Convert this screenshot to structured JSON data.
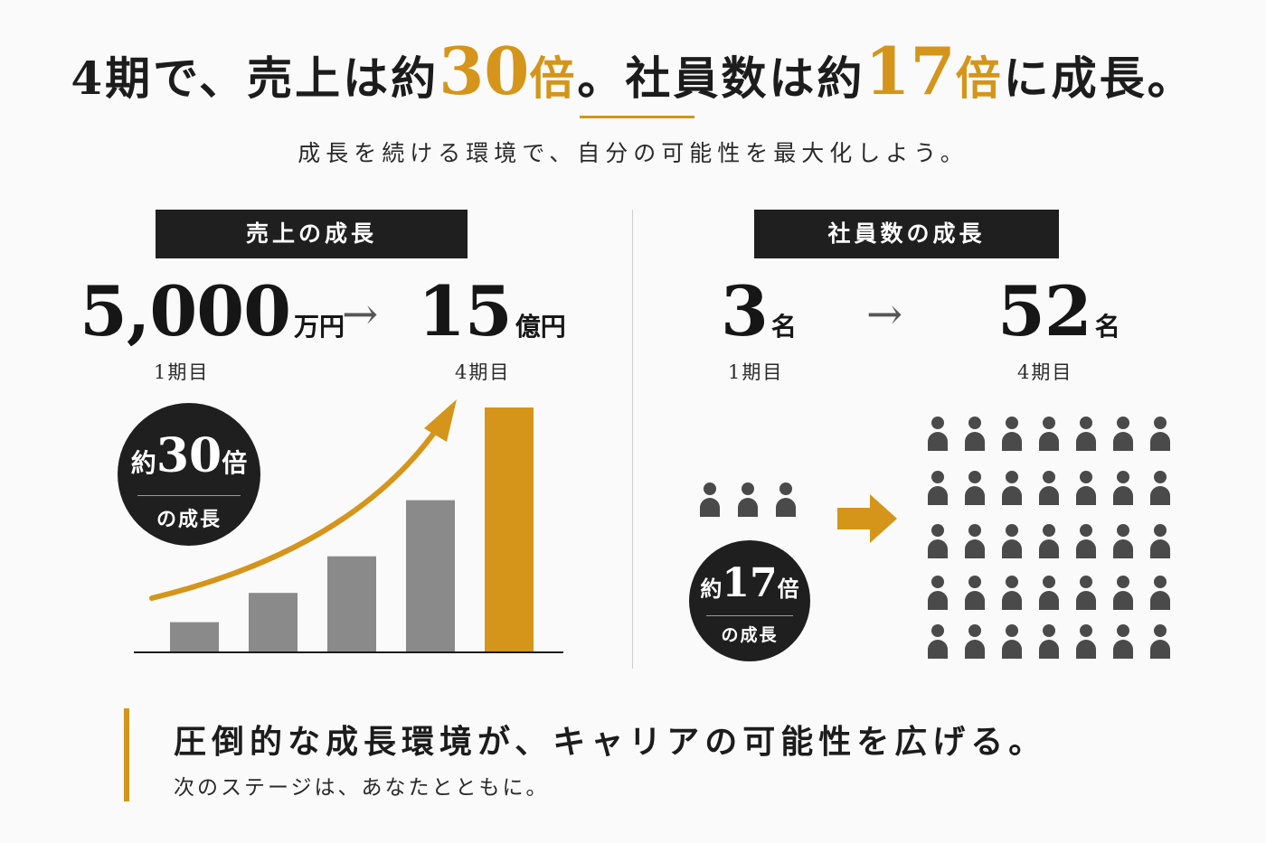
{
  "headline": {
    "part1": "4期で、売上は約",
    "sales_multiplier": "30",
    "sales_unit": "倍",
    "part2": "。社員数は約",
    "staff_multiplier": "17",
    "staff_unit": "倍",
    "part3": "に成長。"
  },
  "subtitle": "成長を続ける環境で、自分の可能性を最大化しよう。",
  "sales": {
    "label": "売上の成長",
    "from_value": "5,000",
    "from_unit": "万円",
    "from_period": "1期目",
    "arrow": "→",
    "to_value": "15",
    "to_unit": "億円",
    "to_period": "4期目",
    "badge": {
      "prefix": "約",
      "number": "30",
      "suffix": "倍",
      "caption": "の成長"
    },
    "bars": [
      0.12,
      0.24,
      0.39,
      0.62,
      1.0
    ],
    "bar_color": "#8a8a8a",
    "highlight_color": "#d4951a"
  },
  "staff": {
    "label": "社員数の成長",
    "from_value": "3",
    "from_unit": "名",
    "from_period": "1期目",
    "arrow": "→",
    "to_value": "52",
    "to_unit": "名",
    "to_period": "4期目",
    "badge": {
      "prefix": "約",
      "number": "17",
      "suffix": "倍",
      "caption": "の成長"
    },
    "before_icons": 3,
    "after_icons": 35,
    "icon": "person-icon"
  },
  "bottom": {
    "main": "圧倒的な成長環境が、キャリアの可能性を広げる。",
    "sub": "次のステージは、あなたとともに。"
  },
  "colors": {
    "accent": "#d4951a",
    "dark": "#1f1f1f",
    "icon": "#4a4a4a"
  }
}
